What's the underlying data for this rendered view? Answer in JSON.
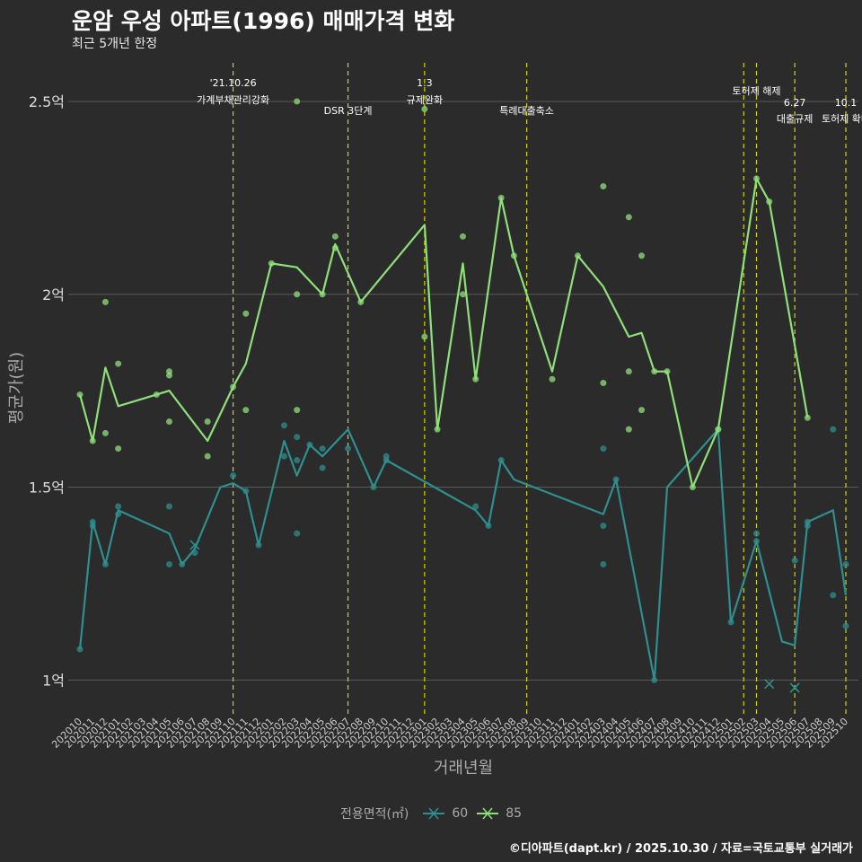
{
  "title": "운암 우성 아파트(1996) 매매가격 변화",
  "subtitle": "최근 5개년 한정",
  "caption": "©디아파트(dapt.kr) / 2025.10.30 / 자료=국토교통부 실거래가",
  "colors": {
    "background": "#2b2b2b",
    "grid": "#5a5a5a",
    "event_line": "#d4d400",
    "s60": "#2f8f8f",
    "s85": "#8fe07a",
    "axis_text": "#aaaaaa"
  },
  "chart_data": {
    "type": "line",
    "xlabel": "거래년월",
    "ylabel": "평균가(원)",
    "ylim": [
      0.91,
      2.6
    ],
    "y_ticks": [
      1.0,
      1.5,
      2.0,
      2.5
    ],
    "y_tick_labels": [
      "1억",
      "1.5억",
      "2억",
      "2.5억"
    ],
    "categories": [
      "202010",
      "202011",
      "202012",
      "202101",
      "202102",
      "202103",
      "202104",
      "202105",
      "202106",
      "202107",
      "202108",
      "202109",
      "202110",
      "202111",
      "202112",
      "202201",
      "202202",
      "202203",
      "202204",
      "202205",
      "202206",
      "202207",
      "202208",
      "202209",
      "202210",
      "202211",
      "202212",
      "202301",
      "202302",
      "202303",
      "202304",
      "202305",
      "202306",
      "202307",
      "202308",
      "202309",
      "202310",
      "202311",
      "202312",
      "202401",
      "202402",
      "202403",
      "202404",
      "202405",
      "202406",
      "202407",
      "202408",
      "202409",
      "202410",
      "202411",
      "202412",
      "202501",
      "202502",
      "202503",
      "202504",
      "202505",
      "202506",
      "202507",
      "202508",
      "202509",
      "202510"
    ],
    "legend_title": "전용면적(㎡)",
    "series": [
      {
        "name": "60",
        "line": [
          [
            0,
            1.08
          ],
          [
            1,
            1.41
          ],
          [
            2,
            1.3
          ],
          [
            3,
            1.44
          ],
          [
            7,
            1.38
          ],
          [
            8,
            1.3
          ],
          [
            9,
            1.34
          ],
          [
            11,
            1.5
          ],
          [
            12,
            1.51
          ],
          [
            13,
            1.49
          ],
          [
            14,
            1.35
          ],
          [
            16,
            1.62
          ],
          [
            17,
            1.53
          ],
          [
            18,
            1.61
          ],
          [
            19,
            1.58
          ],
          [
            21,
            1.65
          ],
          [
            23,
            1.5
          ],
          [
            24,
            1.57
          ],
          [
            31,
            1.44
          ],
          [
            32,
            1.4
          ],
          [
            33,
            1.57
          ],
          [
            34,
            1.52
          ],
          [
            41,
            1.43
          ],
          [
            42,
            1.52
          ],
          [
            45,
            1.0
          ],
          [
            46,
            1.5
          ],
          [
            50,
            1.65
          ],
          [
            51,
            1.15
          ],
          [
            53,
            1.36
          ],
          [
            55,
            1.1
          ],
          [
            56,
            1.09
          ],
          [
            57,
            1.41
          ],
          [
            59,
            1.44
          ],
          [
            60,
            1.22
          ]
        ],
        "points": [
          [
            0,
            1.08
          ],
          [
            1,
            1.41
          ],
          [
            1,
            1.4
          ],
          [
            2,
            1.3
          ],
          [
            3,
            1.45
          ],
          [
            3,
            1.43
          ],
          [
            7,
            1.45
          ],
          [
            7,
            1.3
          ],
          [
            8,
            1.3
          ],
          [
            9,
            1.33
          ],
          [
            12,
            1.53
          ],
          [
            13,
            1.49
          ],
          [
            14,
            1.35
          ],
          [
            16,
            1.66
          ],
          [
            16,
            1.58
          ],
          [
            17,
            1.63
          ],
          [
            17,
            1.57
          ],
          [
            17,
            1.38
          ],
          [
            18,
            1.61
          ],
          [
            19,
            1.6
          ],
          [
            19,
            1.55
          ],
          [
            21,
            1.6
          ],
          [
            23,
            1.5
          ],
          [
            24,
            1.58
          ],
          [
            24,
            1.57
          ],
          [
            31,
            1.45
          ],
          [
            32,
            1.4
          ],
          [
            33,
            1.57
          ],
          [
            41,
            1.6
          ],
          [
            41,
            1.4
          ],
          [
            41,
            1.3
          ],
          [
            42,
            1.52
          ],
          [
            45,
            1.0
          ],
          [
            50,
            1.65
          ],
          [
            51,
            1.15
          ],
          [
            53,
            1.38
          ],
          [
            53,
            1.36
          ],
          [
            56,
            1.31
          ],
          [
            57,
            1.41
          ],
          [
            57,
            1.4
          ],
          [
            59,
            1.65
          ],
          [
            59,
            1.22
          ],
          [
            60,
            1.3
          ],
          [
            60,
            1.14
          ]
        ],
        "cancelled": [
          [
            9,
            1.35
          ],
          [
            54,
            0.99
          ],
          [
            56,
            0.98
          ]
        ]
      },
      {
        "name": "85",
        "line": [
          [
            0,
            1.74
          ],
          [
            1,
            1.62
          ],
          [
            2,
            1.81
          ],
          [
            3,
            1.71
          ],
          [
            6,
            1.74
          ],
          [
            7,
            1.75
          ],
          [
            10,
            1.62
          ],
          [
            12,
            1.76
          ],
          [
            13,
            1.82
          ],
          [
            15,
            2.08
          ],
          [
            17,
            2.07
          ],
          [
            19,
            2.0
          ],
          [
            20,
            2.13
          ],
          [
            22,
            1.98
          ],
          [
            27,
            2.18
          ],
          [
            28,
            1.65
          ],
          [
            30,
            2.08
          ],
          [
            31,
            1.78
          ],
          [
            33,
            2.25
          ],
          [
            34,
            2.1
          ],
          [
            37,
            1.8
          ],
          [
            39,
            2.1
          ],
          [
            41,
            2.02
          ],
          [
            43,
            1.89
          ],
          [
            44,
            1.9
          ],
          [
            45,
            1.8
          ],
          [
            46,
            1.8
          ],
          [
            48,
            1.5
          ],
          [
            50,
            1.65
          ],
          [
            53,
            2.3
          ],
          [
            54,
            2.24
          ],
          [
            57,
            1.68
          ]
        ],
        "points": [
          [
            0,
            1.74
          ],
          [
            1,
            1.62
          ],
          [
            2,
            1.98
          ],
          [
            2,
            1.64
          ],
          [
            3,
            1.82
          ],
          [
            3,
            1.6
          ],
          [
            6,
            1.74
          ],
          [
            7,
            1.8
          ],
          [
            7,
            1.79
          ],
          [
            7,
            1.67
          ],
          [
            10,
            1.67
          ],
          [
            10,
            1.58
          ],
          [
            12,
            1.76
          ],
          [
            13,
            1.95
          ],
          [
            13,
            1.7
          ],
          [
            15,
            2.08
          ],
          [
            17,
            2.5
          ],
          [
            17,
            2.0
          ],
          [
            17,
            1.7
          ],
          [
            19,
            2.0
          ],
          [
            20,
            2.15
          ],
          [
            20,
            2.12
          ],
          [
            22,
            1.98
          ],
          [
            27,
            2.48
          ],
          [
            27,
            1.89
          ],
          [
            28,
            1.65
          ],
          [
            30,
            2.15
          ],
          [
            30,
            2.0
          ],
          [
            31,
            1.78
          ],
          [
            33,
            2.25
          ],
          [
            34,
            2.1
          ],
          [
            37,
            1.78
          ],
          [
            39,
            2.1
          ],
          [
            41,
            2.28
          ],
          [
            41,
            1.77
          ],
          [
            43,
            2.2
          ],
          [
            43,
            1.8
          ],
          [
            43,
            1.65
          ],
          [
            44,
            2.1
          ],
          [
            44,
            1.7
          ],
          [
            45,
            1.8
          ],
          [
            46,
            1.8
          ],
          [
            48,
            1.5
          ],
          [
            50,
            1.65
          ],
          [
            53,
            2.3
          ],
          [
            54,
            2.24
          ],
          [
            57,
            1.68
          ]
        ],
        "cancelled": []
      }
    ],
    "events": [
      {
        "x": 12,
        "date": "'21.10.26",
        "label": "가계부채관리강화"
      },
      {
        "x": 21,
        "date": "",
        "label": "DSR 3단계"
      },
      {
        "x": 27,
        "date": "1.3",
        "label": "규제완화"
      },
      {
        "x": 35,
        "date": "",
        "label": "특례대출축소"
      },
      {
        "x": 52,
        "date": "",
        "label": ""
      },
      {
        "x": 53,
        "date": "토허제 해제",
        "label": ""
      },
      {
        "x": 56,
        "date": "6.27",
        "label": "대출규제"
      },
      {
        "x": 60,
        "date": "10.1",
        "label": "토허제 확대"
      }
    ]
  }
}
